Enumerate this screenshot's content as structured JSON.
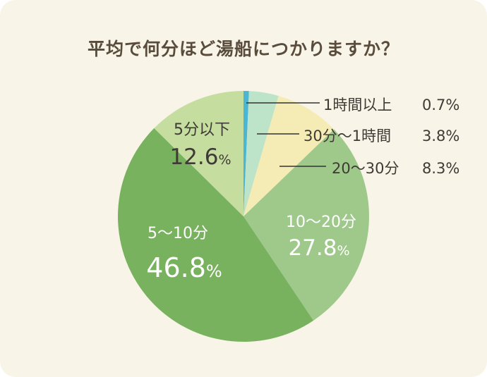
{
  "chart_data": {
    "type": "pie",
    "title": "平均で何分ほど湯船につかりますか？",
    "slices": [
      {
        "label": "1時間以上",
        "value": 0.7,
        "value_text": "0.7%",
        "color": "#4bb6d4"
      },
      {
        "label": "30分〜1時間",
        "value": 3.8,
        "value_text": "3.8%",
        "color": "#bde3c8"
      },
      {
        "label": "20〜30分",
        "value": 8.3,
        "value_text": "8.3%",
        "color": "#f4ecb4"
      },
      {
        "label": "10〜20分",
        "value": 27.8,
        "value_text": "27.8%",
        "color": "#9fc98b"
      },
      {
        "label": "5〜10分",
        "value": 46.8,
        "value_text": "46.8%",
        "color": "#79b25e"
      },
      {
        "label": "5分以下",
        "value": 12.6,
        "value_text": "12.6%",
        "color": "#c5dea0"
      }
    ]
  }
}
